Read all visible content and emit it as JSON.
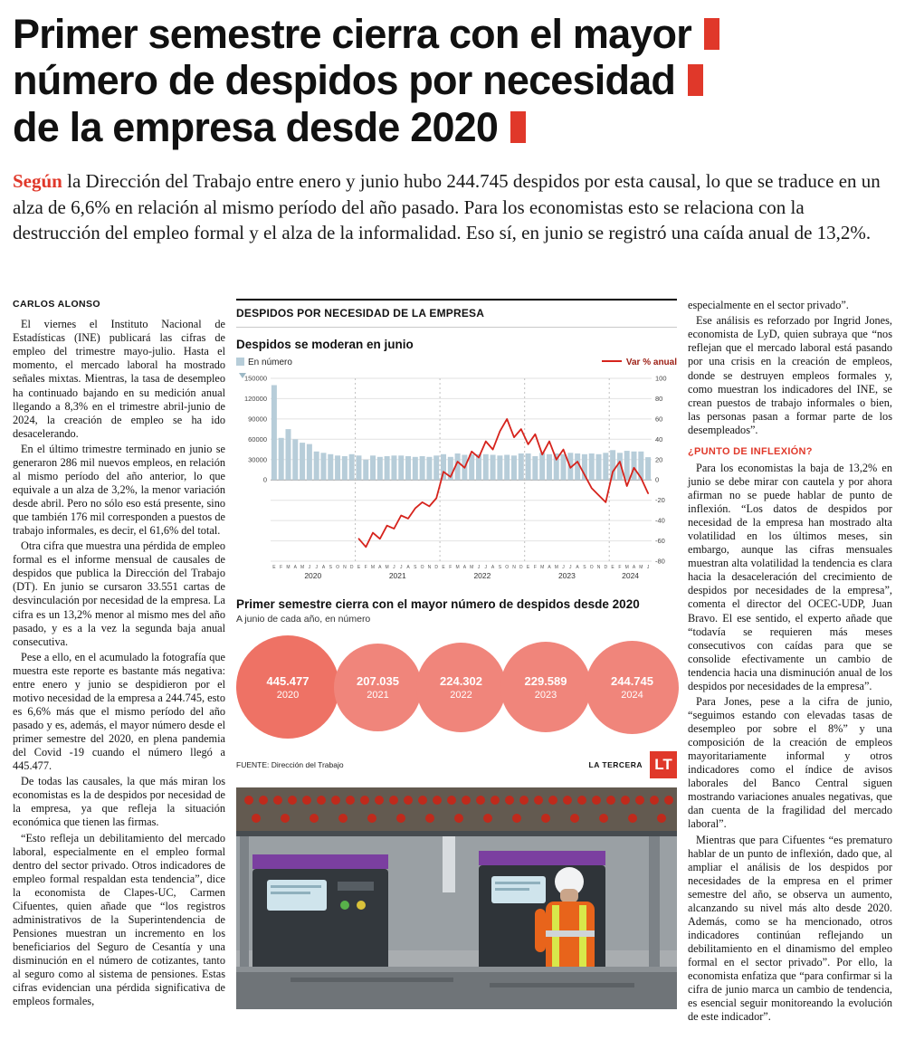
{
  "colors": {
    "accent": "#e0382a",
    "bar": "#b7cdd9",
    "line": "#d6231c"
  },
  "headline": {
    "lines": [
      "Primer semestre cierra con el mayor",
      "número de despidos por necesidad",
      "de la empresa desde 2020"
    ]
  },
  "lead": {
    "highlight": "Según",
    "text": " la Dirección del Trabajo entre enero y junio hubo 244.745 despidos por esta causal, lo que se traduce en un alza de 6,6% en relación al mismo período del año pasado. Para los economistas esto se relaciona con la destrucción del empleo formal y el alza de la informalidad. Eso sí, en junio se registró una caída anual de 13,2%."
  },
  "byline": "CARLOS ALONSO",
  "left_column": [
    "El viernes el Instituto Nacional de Estadísticas (INE) publicará las cifras de empleo del trimestre mayo-julio. Hasta el momento, el mercado laboral ha mostrado señales mixtas. Mientras, la tasa de desempleo ha continuado bajando en su medición anual llegando a 8,3% en el trimestre abril-junio de 2024, la creación de empleo se ha ido desacelerando.",
    "En el último trimestre terminado en junio se generaron 286 mil nuevos empleos, en relación al mismo período del año anterior, lo que equivale a un alza de 3,2%, la menor variación desde abril. Pero no sólo eso está presente, sino que también 176 mil corresponden a puestos de trabajo informales, es decir, el 61,6% del total.",
    "Otra cifra que muestra una pérdida de empleo formal es el informe mensual de causales de despidos que publica la Dirección del Trabajo (DT). En junio se cursaron 33.551 cartas de desvinculación por necesidad de la empresa. La cifra es un 13,2% menor al mismo mes del año pasado, y es a la vez la segunda baja anual consecutiva.",
    "Pese a ello, en el acumulado la fotografía que muestra este reporte es bastante más negativa: entre enero y junio se despidieron por el motivo necesidad de la empresa a 244.745, esto es 6,6% más que el mismo período del año pasado y es, además, el mayor número desde el primer semestre del 2020, en plena pandemia del Covid -19 cuando el número llegó a 445.477.",
    "De todas las causales, la que más miran los economistas es la de despidos por necesidad de la empresa, ya que refleja la situación económica que tienen las firmas.",
    "“Esto refleja un debilitamiento del mercado laboral, especialmente en el empleo formal dentro del sector privado. Otros indicadores de empleo formal respaldan esta tendencia”, dice la economista de Clapes-UC, Carmen Cifuentes, quien añade que “los registros administrativos de la Superintendencia de Pensiones muestran un incremento en los beneficiarios del Seguro de Cesantía y una disminución en el número de cotizantes, tanto al seguro como al sistema de pensiones. Estas cifras evidencian una pérdida significativa de empleos formales,"
  ],
  "right_column": {
    "before": [
      "especialmente en el sector privado”.",
      "Ese análisis es reforzado por Ingrid Jones, economista de LyD, quien subraya que “nos reflejan que el mercado laboral está pasando por una crisis en la creación de empleos, donde se destruyen empleos formales y, como muestran los indicadores del INE, se crean puestos de trabajo informales o bien, las personas pasan a formar parte de los desempleados”."
    ],
    "subhead": "¿PUNTO DE INFLEXIÓN?",
    "after": [
      "Para los economistas la baja de 13,2% en junio se debe mirar con cautela y por ahora afirman no se puede hablar de punto de inflexión. “Los datos de despidos por necesidad de la empresa han mostrado alta volatilidad en los últimos meses, sin embargo, aunque las cifras mensuales muestran alta volatilidad la tendencia es clara hacia la desaceleración del crecimiento de despidos por necesidades de la empresa”, comenta el director del OCEC-UDP, Juan Bravo. El ese sentido, el experto añade que “todavía se requieren más meses consecutivos con caídas para que se consolide efectivamente un cambio de tendencia hacia una disminución anual de los despidos por necesidades de la empresa”.",
      "Para Jones, pese a la cifra de junio, “seguimos estando con elevadas tasas de desempleo por sobre el 8%” y una composición de la creación de empleos mayoritariamente informal y otros indicadores como el índice de avisos laborales del Banco Central siguen mostrando variaciones anuales negativas, que dan cuenta de la fragilidad del mercado laboral”.",
      "Mientras que para Cifuentes “es prematuro hablar de un punto de inflexión, dado que, al ampliar el análisis de los despidos por necesidades de la empresa en el primer semestre del año, se observa un aumento, alcanzando su nivel más alto desde 2020. Además, como se ha mencionado, otros indicadores continúan reflejando un debilitamiento en el dinamismo del empleo formal en el sector privado”. Por ello, la economista enfatiza que “para confirmar si la cifra de junio marca un cambio de tendencia, es esencial seguir monitoreando la evolución de este indicador”."
    ]
  },
  "infographic": {
    "kicker": "DESPIDOS POR NECESIDAD DE LA EMPRESA",
    "chart_title": "Despidos se moderan en junio",
    "legend_bar": "En número",
    "legend_line": "Var % anual",
    "bubble_title": "Primer semestre cierra con el mayor número de despidos desde 2020",
    "bubble_subtitle": "A junio de cada año, en número",
    "source": "FUENTE: Dirección del Trabajo",
    "credit": "LA TERCERA",
    "logo": "LT"
  },
  "bubbles": [
    {
      "value": "445.477",
      "year": "2020",
      "size": 114,
      "color": "#ee7265"
    },
    {
      "value": "207.035",
      "year": "2021",
      "size": 97,
      "color": "#f0857b"
    },
    {
      "value": "224.302",
      "year": "2022",
      "size": 99,
      "color": "#f0857b"
    },
    {
      "value": "229.589",
      "year": "2023",
      "size": 100,
      "color": "#f0857b"
    },
    {
      "value": "244.745",
      "year": "2024",
      "size": 103,
      "color": "#f0857b"
    }
  ],
  "chart_data": {
    "type": "bar+line",
    "title": "Despidos se moderan en junio",
    "series_bar_name": "En número",
    "series_line_name": "Var % anual",
    "left_axis": {
      "min": 0,
      "max": 150000,
      "ticks": [
        150000,
        120000,
        90000,
        60000,
        30000,
        0
      ]
    },
    "right_axis": {
      "min": -80,
      "max": 100,
      "ticks": [
        100,
        80,
        60,
        40,
        20,
        0,
        -20,
        -40,
        -60,
        -80
      ]
    },
    "month_labels": [
      "E",
      "F",
      "M",
      "A",
      "M",
      "J",
      "J",
      "A",
      "S",
      "O",
      "N",
      "D"
    ],
    "years": [
      {
        "label": "2020",
        "months": 12
      },
      {
        "label": "2021",
        "months": 12
      },
      {
        "label": "2022",
        "months": 12
      },
      {
        "label": "2023",
        "months": 12
      },
      {
        "label": "2024",
        "months": 6
      }
    ],
    "bars": [
      140000,
      62000,
      75000,
      60000,
      55000,
      53000,
      42000,
      40000,
      38000,
      36000,
      35000,
      38000,
      36000,
      30000,
      36000,
      34000,
      35000,
      36000,
      36000,
      35000,
      34000,
      35000,
      34000,
      36000,
      38000,
      34000,
      39000,
      37000,
      38000,
      38000,
      38000,
      37000,
      36000,
      37000,
      36000,
      39000,
      39000,
      35000,
      40000,
      38000,
      39000,
      38000,
      40000,
      39000,
      38000,
      39000,
      38000,
      40000,
      44000,
      40000,
      43000,
      42000,
      42000,
      33551
    ],
    "line": [
      null,
      null,
      null,
      null,
      null,
      null,
      null,
      null,
      null,
      null,
      null,
      null,
      -58,
      -66,
      -52,
      -58,
      -45,
      -48,
      -35,
      -38,
      -28,
      -22,
      -26,
      -18,
      8,
      3,
      18,
      12,
      28,
      22,
      38,
      30,
      48,
      60,
      42,
      50,
      35,
      45,
      25,
      38,
      20,
      30,
      12,
      18,
      5,
      -8,
      -15,
      -22,
      8,
      18,
      -6,
      12,
      2,
      -13.2
    ]
  }
}
